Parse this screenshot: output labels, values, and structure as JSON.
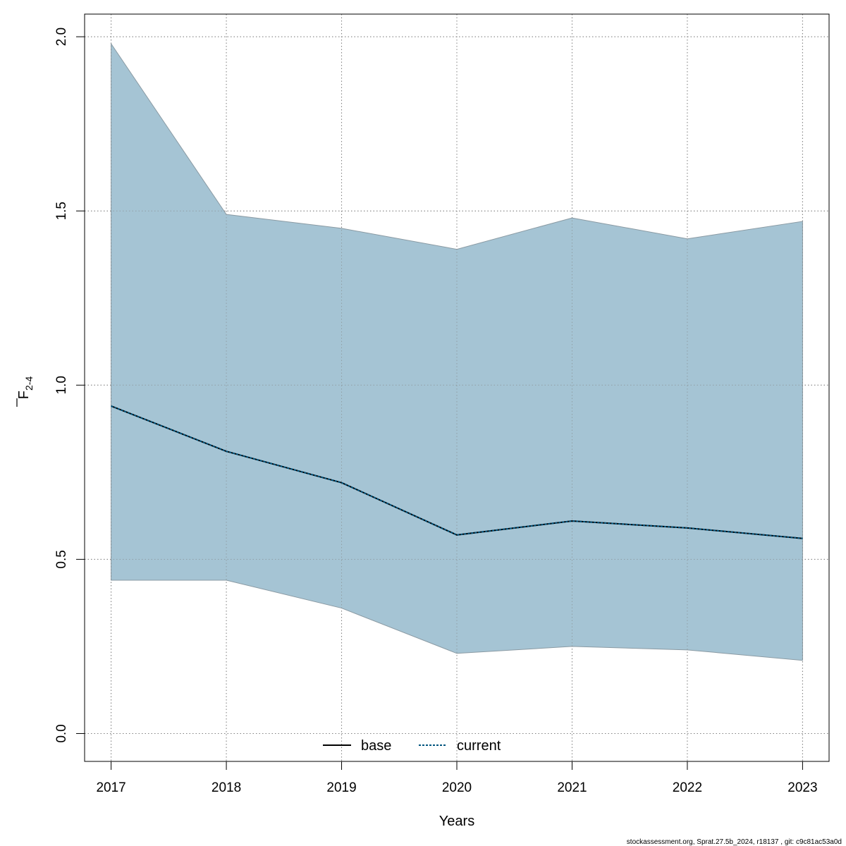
{
  "chart_data": {
    "type": "line",
    "x": [
      2017,
      2018,
      2019,
      2020,
      2021,
      2022,
      2023
    ],
    "series": [
      {
        "name": "base",
        "values": [
          0.94,
          0.81,
          0.72,
          0.57,
          0.61,
          0.59,
          0.56
        ],
        "color": "#000000",
        "dash": "solid"
      },
      {
        "name": "current",
        "values": [
          0.94,
          0.81,
          0.72,
          0.57,
          0.61,
          0.59,
          0.56
        ],
        "color": "#00557f",
        "dash": "dotted"
      }
    ],
    "band": {
      "lower": [
        0.44,
        0.44,
        0.36,
        0.23,
        0.25,
        0.24,
        0.21
      ],
      "upper": [
        1.98,
        1.49,
        1.45,
        1.39,
        1.48,
        1.42,
        1.47
      ],
      "fill": "#a5c4d4",
      "stroke": "#8a9aa3"
    },
    "xlabel": "Years",
    "ylabel_main": "F",
    "ylabel_sub": "2-4",
    "xlim": [
      2016.77,
      2023.23
    ],
    "ylim": [
      -0.08,
      2.065
    ],
    "yticks": [
      0.0,
      0.5,
      1.0,
      1.5,
      2.0
    ],
    "ytick_labels": [
      "0.0",
      "0.5",
      "1.0",
      "1.5",
      "2.0"
    ],
    "xtick_labels": [
      "2017",
      "2018",
      "2019",
      "2020",
      "2021",
      "2022",
      "2023"
    ],
    "grid": true,
    "legend_position": "bottom",
    "footer": "stockassessment.org, Sprat.27.5b_2024, r18137 , git: c9c81ac53a0d"
  }
}
